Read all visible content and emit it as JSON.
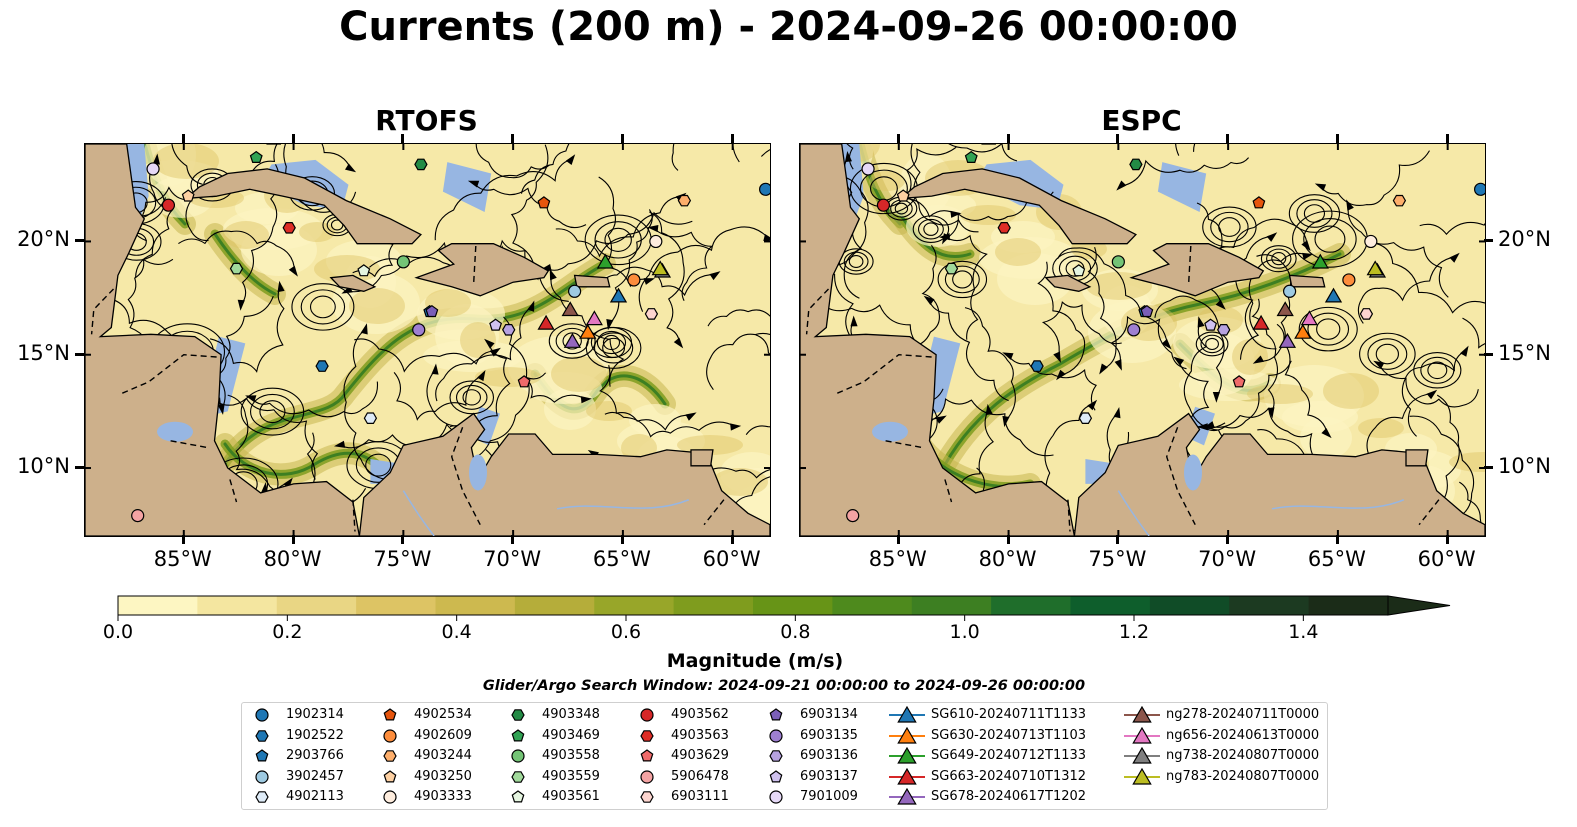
{
  "title": "Currents (200 m) - 2024-09-26 00:00:00",
  "panels": [
    {
      "name": "RTOFS"
    },
    {
      "name": "ESPC"
    }
  ],
  "lat_ticks": [
    "20°N",
    "15°N",
    "10°N"
  ],
  "lon_ticks": [
    "85°W",
    "80°W",
    "75°W",
    "70°W",
    "65°W",
    "60°W"
  ],
  "map_extent": {
    "lon": [
      -89.5,
      -58.3
    ],
    "lat": [
      7.0,
      24.3
    ]
  },
  "colorbar": {
    "label": "Magnitude (m/s)",
    "ticks": [
      "0.0",
      "0.2",
      "0.4",
      "0.6",
      "0.8",
      "1.0",
      "1.2",
      "1.4"
    ],
    "range": [
      0,
      1.5
    ],
    "colors": [
      "#fdf6c2",
      "#f4e6a0",
      "#e9d684",
      "#ddc464",
      "#cdb94f",
      "#b5ad3a",
      "#98a629",
      "#7f9c1e",
      "#679417",
      "#4e8a1d",
      "#3d7f22",
      "#1f6e2b",
      "#0e5e2c",
      "#104c27",
      "#1c3a21",
      "#1b2c18"
    ],
    "extend": "max"
  },
  "search_window": "Glider/Argo Search Window: 2024-09-21 00:00:00 to 2024-09-26 00:00:00",
  "legend": {
    "columns": [
      [
        {
          "label": "1902314",
          "marker": "circle",
          "color": "#1f77b4"
        },
        {
          "label": "1902522",
          "marker": "hexagon",
          "color": "#1f77b4"
        },
        {
          "label": "2903766",
          "marker": "pentagon",
          "color": "#1f77b4"
        },
        {
          "label": "3902457",
          "marker": "circle",
          "color": "#9ecae1"
        },
        {
          "label": "4902113",
          "marker": "hexagon",
          "color": "#deebf7"
        }
      ],
      [
        {
          "label": "4902534",
          "marker": "pentagon",
          "color": "#e6550d"
        },
        {
          "label": "4902609",
          "marker": "circle",
          "color": "#fd8d3c"
        },
        {
          "label": "4903244",
          "marker": "hexagon",
          "color": "#fdae6b"
        },
        {
          "label": "4903250",
          "marker": "pentagon",
          "color": "#fdd0a2"
        },
        {
          "label": "4903333",
          "marker": "circle",
          "color": "#feedde"
        }
      ],
      [
        {
          "label": "4903348",
          "marker": "hexagon",
          "color": "#238b45"
        },
        {
          "label": "4903469",
          "marker": "pentagon",
          "color": "#31a354"
        },
        {
          "label": "4903558",
          "marker": "circle",
          "color": "#74c476"
        },
        {
          "label": "4903559",
          "marker": "hexagon",
          "color": "#a1d99b"
        },
        {
          "label": "4903561",
          "marker": "pentagon",
          "color": "#e5f5e0"
        }
      ],
      [
        {
          "label": "4903562",
          "marker": "circle",
          "color": "#d62728"
        },
        {
          "label": "4903563",
          "marker": "hexagon",
          "color": "#de2d26"
        },
        {
          "label": "4903629",
          "marker": "pentagon",
          "color": "#ef6a6a"
        },
        {
          "label": "5906478",
          "marker": "circle",
          "color": "#f4a3a3"
        },
        {
          "label": "6903111",
          "marker": "hexagon",
          "color": "#fdd5cf"
        }
      ],
      [
        {
          "label": "6903134",
          "marker": "pentagon",
          "color": "#7b5fb8"
        },
        {
          "label": "6903135",
          "marker": "circle",
          "color": "#9e7fd1"
        },
        {
          "label": "6903136",
          "marker": "hexagon",
          "color": "#b7a2e0"
        },
        {
          "label": "6903137",
          "marker": "pentagon",
          "color": "#d0c2ef"
        },
        {
          "label": "7901009",
          "marker": "circle",
          "color": "#e6d9f7"
        }
      ],
      [
        {
          "label": "SG610-20240711T1133",
          "marker": "triangle",
          "color": "#1f77b4"
        },
        {
          "label": "SG630-20240713T1103",
          "marker": "triangle",
          "color": "#ff7f0e"
        },
        {
          "label": "SG649-20240712T1133",
          "marker": "triangle",
          "color": "#2ca02c"
        },
        {
          "label": "SG663-20240710T1312",
          "marker": "triangle",
          "color": "#d62728"
        },
        {
          "label": "SG678-20240617T1202",
          "marker": "triangle",
          "color": "#9467bd"
        }
      ],
      [
        {
          "label": "ng278-20240711T0000",
          "marker": "triangle",
          "color": "#8c564b"
        },
        {
          "label": "ng656-20240613T0000",
          "marker": "triangle",
          "color": "#e377c2"
        },
        {
          "label": "ng738-20240807T0000",
          "marker": "triangle",
          "color": "#7f7f7f"
        },
        {
          "label": "ng783-20240807T0000",
          "marker": "triangle",
          "color": "#bcbd22"
        }
      ]
    ]
  },
  "observations": [
    {
      "id": "1902314",
      "lon": -58.5,
      "lat": 22.3
    },
    {
      "id": "1902522",
      "lon": -78.7,
      "lat": 14.5
    },
    {
      "id": "2903766",
      "lon": -73.8,
      "lat": 16.9
    },
    {
      "id": "3902457",
      "lon": -67.2,
      "lat": 17.8
    },
    {
      "id": "4902113",
      "lon": -76.5,
      "lat": 12.2
    },
    {
      "id": "4902534",
      "lon": -68.6,
      "lat": 21.7
    },
    {
      "id": "4902609",
      "lon": -64.5,
      "lat": 18.3
    },
    {
      "id": "4903244",
      "lon": -62.2,
      "lat": 21.8
    },
    {
      "id": "4903250",
      "lon": -84.8,
      "lat": 22.0
    },
    {
      "id": "4903333",
      "lon": -63.5,
      "lat": 20.0
    },
    {
      "id": "4903348",
      "lon": -74.2,
      "lat": 23.4
    },
    {
      "id": "4903469",
      "lon": -81.7,
      "lat": 23.7
    },
    {
      "id": "4903558",
      "lon": -75.0,
      "lat": 19.1
    },
    {
      "id": "4903559",
      "lon": -82.6,
      "lat": 18.8
    },
    {
      "id": "4903561",
      "lon": -76.8,
      "lat": 18.7
    },
    {
      "id": "4903562",
      "lon": -85.7,
      "lat": 21.6
    },
    {
      "id": "4903563",
      "lon": -80.2,
      "lat": 20.6
    },
    {
      "id": "4903629",
      "lon": -69.5,
      "lat": 13.8
    },
    {
      "id": "5906478",
      "lon": -87.1,
      "lat": 7.9
    },
    {
      "id": "6903111",
      "lon": -63.7,
      "lat": 16.8
    },
    {
      "id": "6903134",
      "lon": -73.7,
      "lat": 16.9
    },
    {
      "id": "6903135",
      "lon": -74.3,
      "lat": 16.1
    },
    {
      "id": "6903136",
      "lon": -70.2,
      "lat": 16.1
    },
    {
      "id": "6903137",
      "lon": -70.8,
      "lat": 16.3
    },
    {
      "id": "7901009",
      "lon": -86.4,
      "lat": 23.2
    },
    {
      "id": "SG610-20240711T1133",
      "lon": -65.2,
      "lat": 17.6
    },
    {
      "id": "SG630-20240713T1103",
      "lon": -66.6,
      "lat": 16.0
    },
    {
      "id": "SG649-20240712T1133",
      "lon": -65.8,
      "lat": 19.1
    },
    {
      "id": "SG663-20240710T1312",
      "lon": -68.5,
      "lat": 16.4
    },
    {
      "id": "SG678-20240617T1202",
      "lon": -67.3,
      "lat": 15.6
    },
    {
      "id": "ng278-20240711T0000",
      "lon": -67.4,
      "lat": 17.0
    },
    {
      "id": "ng656-20240613T0000",
      "lon": -66.3,
      "lat": 16.6
    },
    {
      "id": "ng738-20240807T0000",
      "lon": -63.2,
      "lat": 18.7
    },
    {
      "id": "ng783-20240807T0000",
      "lon": -63.3,
      "lat": 18.8
    }
  ]
}
